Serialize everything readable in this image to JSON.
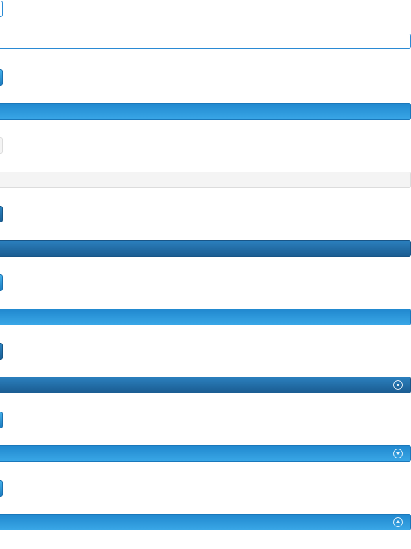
{
  "controls": [
    {
      "name": "outline-button",
      "variant": "outline"
    },
    {
      "name": "outline-block-button",
      "variant": "outline"
    },
    {
      "name": "primary-button",
      "variant": "blue-light"
    },
    {
      "name": "primary-block-button",
      "variant": "blue-light"
    },
    {
      "name": "default-button",
      "variant": "grey"
    },
    {
      "name": "default-block-button",
      "variant": "grey"
    },
    {
      "name": "dark-button",
      "variant": "blue-dark"
    },
    {
      "name": "dark-block-button",
      "variant": "blue-dark"
    },
    {
      "name": "primary-button-2",
      "variant": "blue-light"
    },
    {
      "name": "primary-block-button-2",
      "variant": "blue-light"
    },
    {
      "name": "dark-button-2",
      "variant": "blue-dark"
    },
    {
      "name": "dark-block-button-collapsible",
      "variant": "blue-dark",
      "icon": "chevron-circle-down-icon"
    },
    {
      "name": "primary-button-3",
      "variant": "blue-light"
    },
    {
      "name": "primary-block-button-collapsible",
      "variant": "blue-light",
      "icon": "chevron-circle-down-icon"
    },
    {
      "name": "primary-button-4",
      "variant": "blue-light"
    },
    {
      "name": "primary-block-button-expanded",
      "variant": "blue-light",
      "icon": "chevron-circle-up-icon"
    }
  ],
  "colors": {
    "outline_border": "#2a8ad4",
    "blue_light_top": "#2189cf",
    "blue_light_bottom": "#39a6e6",
    "blue_dark_top": "#2b7fbd",
    "blue_dark_bottom": "#1b5d92",
    "grey_bg": "#f4f4f4",
    "grey_border": "#dcdcdc"
  }
}
